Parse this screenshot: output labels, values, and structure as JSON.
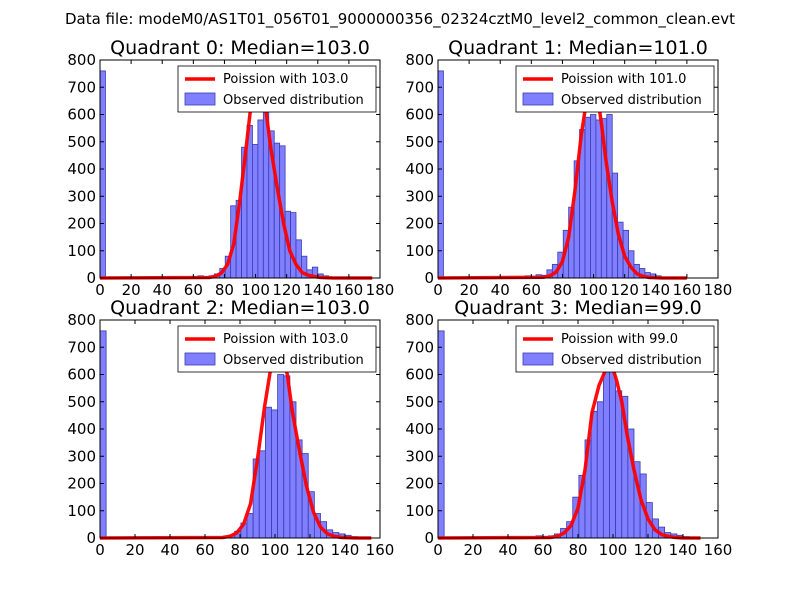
{
  "figure": {
    "suptitle": "Data file: modeM0/AS1T01_056T01_9000000356_02324cztM0_level2_common_clean.evt"
  },
  "colors": {
    "poisson_line": "#ff0000",
    "bar_fill": "#7f7fff",
    "bar_edge": "#3b3bb0"
  },
  "chart_data": [
    {
      "type": "bar",
      "title": "Quadrant 0: Median=103.0",
      "xlabel": "",
      "ylabel": "",
      "xlim": [
        0,
        180
      ],
      "ylim": [
        0,
        800
      ],
      "xticks": [
        0,
        20,
        40,
        60,
        80,
        100,
        120,
        140,
        160,
        180
      ],
      "yticks": [
        0,
        100,
        200,
        300,
        400,
        500,
        600,
        700,
        800
      ],
      "legend_position": "top-right",
      "legend": [
        "Poission with 103.0",
        "Observed distribution"
      ],
      "bin_width": 3.5,
      "bins": [
        {
          "x": 0,
          "count": 760
        },
        {
          "x": 63,
          "count": 8
        },
        {
          "x": 66.5,
          "count": 5
        },
        {
          "x": 70,
          "count": 8
        },
        {
          "x": 73.5,
          "count": 15
        },
        {
          "x": 77,
          "count": 35
        },
        {
          "x": 80.5,
          "count": 80
        },
        {
          "x": 84,
          "count": 265
        },
        {
          "x": 87.5,
          "count": 285
        },
        {
          "x": 91,
          "count": 480
        },
        {
          "x": 94.5,
          "count": 560
        },
        {
          "x": 98,
          "count": 490
        },
        {
          "x": 101.5,
          "count": 580
        },
        {
          "x": 105,
          "count": 640
        },
        {
          "x": 108.5,
          "count": 540
        },
        {
          "x": 112,
          "count": 495
        },
        {
          "x": 115.5,
          "count": 485
        },
        {
          "x": 119,
          "count": 245
        },
        {
          "x": 122.5,
          "count": 240
        },
        {
          "x": 126,
          "count": 140
        },
        {
          "x": 129.5,
          "count": 80
        },
        {
          "x": 133,
          "count": 30
        },
        {
          "x": 136.5,
          "count": 40
        },
        {
          "x": 140,
          "count": 15
        },
        {
          "x": 143.5,
          "count": 8
        }
      ],
      "poisson": {
        "label": "Poission with 103.0",
        "x": [
          0,
          70,
          74,
          78,
          82,
          86,
          90,
          94,
          98,
          101,
          104,
          107,
          110,
          114,
          118,
          122,
          126,
          130,
          134,
          138,
          142,
          146,
          150,
          175
        ],
        "y": [
          0,
          2,
          6,
          18,
          50,
          125,
          290,
          480,
          680,
          760,
          720,
          600,
          470,
          330,
          200,
          100,
          50,
          20,
          10,
          5,
          2,
          1,
          0,
          0
        ]
      }
    },
    {
      "type": "bar",
      "title": "Quadrant 1: Median=101.0",
      "xlabel": "",
      "ylabel": "",
      "xlim": [
        0,
        180
      ],
      "ylim": [
        0,
        800
      ],
      "xticks": [
        0,
        20,
        40,
        60,
        80,
        100,
        120,
        140,
        160,
        180
      ],
      "yticks": [
        0,
        100,
        200,
        300,
        400,
        500,
        600,
        700,
        800
      ],
      "legend_position": "top-right",
      "legend": [
        "Poission with 101.0",
        "Observed distribution"
      ],
      "bin_width": 3.5,
      "bins": [
        {
          "x": 0,
          "count": 760
        },
        {
          "x": 56,
          "count": 8
        },
        {
          "x": 59.5,
          "count": 5
        },
        {
          "x": 63,
          "count": 12
        },
        {
          "x": 66.5,
          "count": 10
        },
        {
          "x": 70,
          "count": 30
        },
        {
          "x": 73.5,
          "count": 50
        },
        {
          "x": 77,
          "count": 95
        },
        {
          "x": 80.5,
          "count": 175
        },
        {
          "x": 84,
          "count": 260
        },
        {
          "x": 87.5,
          "count": 430
        },
        {
          "x": 91,
          "count": 545
        },
        {
          "x": 94.5,
          "count": 590
        },
        {
          "x": 98,
          "count": 600
        },
        {
          "x": 101.5,
          "count": 580
        },
        {
          "x": 105,
          "count": 585
        },
        {
          "x": 108.5,
          "count": 600
        },
        {
          "x": 112,
          "count": 385
        },
        {
          "x": 115.5,
          "count": 205
        },
        {
          "x": 119,
          "count": 175
        },
        {
          "x": 122.5,
          "count": 100
        },
        {
          "x": 126,
          "count": 50
        },
        {
          "x": 129.5,
          "count": 35
        },
        {
          "x": 133,
          "count": 20
        },
        {
          "x": 136.5,
          "count": 15
        },
        {
          "x": 140,
          "count": 8
        }
      ],
      "poisson": {
        "label": "Poission with 101.0",
        "x": [
          0,
          68,
          72,
          76,
          80,
          84,
          88,
          92,
          96,
          99,
          102,
          105,
          108,
          112,
          116,
          120,
          124,
          128,
          132,
          136,
          140,
          144,
          160
        ],
        "y": [
          0,
          3,
          8,
          22,
          60,
          150,
          320,
          520,
          670,
          720,
          690,
          570,
          430,
          280,
          160,
          80,
          40,
          15,
          6,
          2,
          1,
          0,
          0
        ]
      }
    },
    {
      "type": "bar",
      "title": "Quadrant 2: Median=103.0",
      "xlabel": "",
      "ylabel": "",
      "xlim": [
        0,
        160
      ],
      "ylim": [
        0,
        800
      ],
      "xticks": [
        0,
        20,
        40,
        60,
        80,
        100,
        120,
        140,
        160
      ],
      "yticks": [
        0,
        100,
        200,
        300,
        400,
        500,
        600,
        700,
        800
      ],
      "legend_position": "top-right",
      "legend": [
        "Poission with 103.0",
        "Observed distribution"
      ],
      "bin_width": 3.5,
      "bins": [
        {
          "x": 0,
          "count": 760
        },
        {
          "x": 70,
          "count": 5
        },
        {
          "x": 73.5,
          "count": 10
        },
        {
          "x": 77,
          "count": 25
        },
        {
          "x": 80.5,
          "count": 55
        },
        {
          "x": 84,
          "count": 90
        },
        {
          "x": 87.5,
          "count": 290
        },
        {
          "x": 91,
          "count": 320
        },
        {
          "x": 94.5,
          "count": 480
        },
        {
          "x": 98,
          "count": 470
        },
        {
          "x": 101.5,
          "count": 600
        },
        {
          "x": 105,
          "count": 595
        },
        {
          "x": 108.5,
          "count": 500
        },
        {
          "x": 112,
          "count": 360
        },
        {
          "x": 115.5,
          "count": 310
        },
        {
          "x": 119,
          "count": 170
        },
        {
          "x": 122.5,
          "count": 90
        },
        {
          "x": 126,
          "count": 60
        },
        {
          "x": 129.5,
          "count": 30
        },
        {
          "x": 133,
          "count": 20
        },
        {
          "x": 136.5,
          "count": 15
        },
        {
          "x": 140,
          "count": 10
        },
        {
          "x": 143.5,
          "count": 5
        }
      ],
      "poisson": {
        "label": "Poission with 103.0",
        "x": [
          0,
          70,
          74,
          78,
          82,
          86,
          90,
          94,
          98,
          101,
          104,
          107,
          110,
          114,
          118,
          122,
          126,
          130,
          134,
          138,
          142,
          146,
          155
        ],
        "y": [
          0,
          2,
          6,
          18,
          50,
          125,
          290,
          480,
          640,
          710,
          690,
          600,
          460,
          320,
          190,
          95,
          40,
          15,
          6,
          2,
          1,
          0,
          0
        ]
      }
    },
    {
      "type": "bar",
      "title": "Quadrant 3: Median=99.0",
      "xlabel": "",
      "ylabel": "",
      "xlim": [
        0,
        160
      ],
      "ylim": [
        0,
        800
      ],
      "xticks": [
        0,
        20,
        40,
        60,
        80,
        100,
        120,
        140,
        160
      ],
      "yticks": [
        0,
        100,
        200,
        300,
        400,
        500,
        600,
        700,
        800
      ],
      "legend_position": "top-right",
      "legend": [
        "Poission with 99.0",
        "Observed distribution"
      ],
      "bin_width": 3.5,
      "bins": [
        {
          "x": 0,
          "count": 760
        },
        {
          "x": 56,
          "count": 8
        },
        {
          "x": 59.5,
          "count": 5
        },
        {
          "x": 63,
          "count": 8
        },
        {
          "x": 66.5,
          "count": 15
        },
        {
          "x": 70,
          "count": 35
        },
        {
          "x": 73.5,
          "count": 60
        },
        {
          "x": 77,
          "count": 150
        },
        {
          "x": 80.5,
          "count": 230
        },
        {
          "x": 84,
          "count": 360
        },
        {
          "x": 87.5,
          "count": 465
        },
        {
          "x": 91,
          "count": 500
        },
        {
          "x": 94.5,
          "count": 610
        },
        {
          "x": 98,
          "count": 620
        },
        {
          "x": 101.5,
          "count": 540
        },
        {
          "x": 105,
          "count": 520
        },
        {
          "x": 108.5,
          "count": 400
        },
        {
          "x": 112,
          "count": 280
        },
        {
          "x": 115.5,
          "count": 235
        },
        {
          "x": 119,
          "count": 130
        },
        {
          "x": 122.5,
          "count": 70
        },
        {
          "x": 126,
          "count": 40
        },
        {
          "x": 129.5,
          "count": 20
        },
        {
          "x": 133,
          "count": 15
        },
        {
          "x": 136.5,
          "count": 10
        },
        {
          "x": 140,
          "count": 5
        }
      ],
      "poisson": {
        "label": "Poission with 99.0",
        "x": [
          0,
          64,
          68,
          72,
          76,
          80,
          84,
          88,
          92,
          96,
          99,
          102,
          105,
          108,
          112,
          116,
          120,
          124,
          128,
          132,
          136,
          140,
          150
        ],
        "y": [
          0,
          2,
          6,
          18,
          45,
          110,
          250,
          460,
          560,
          620,
          640,
          580,
          500,
          380,
          250,
          140,
          70,
          30,
          12,
          5,
          2,
          0,
          0
        ]
      }
    }
  ]
}
